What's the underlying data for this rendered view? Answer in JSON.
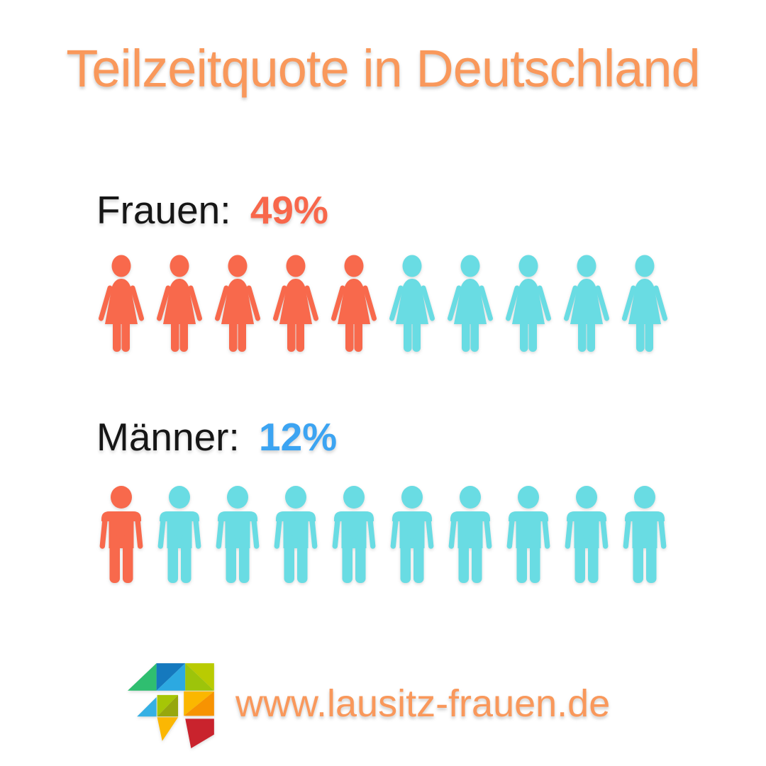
{
  "title": "Teilzeitquote in Deutschland",
  "chart_data": {
    "type": "pictograph",
    "title": "Teilzeitquote in Deutschland",
    "categories": [
      "Frauen",
      "Männer"
    ],
    "values": [
      49,
      12
    ],
    "unit": "%",
    "icons_per_row": 10,
    "legend_position": "none",
    "series": [
      {
        "label": "Frauen:",
        "value": 49,
        "value_label": "49%",
        "icon": "female",
        "icons_total": 10,
        "icons_highlighted": 5,
        "highlight_color": "#F8694C",
        "base_color": "#69DCE3",
        "value_color": "#F8674B"
      },
      {
        "label": "Männer:",
        "value": 12,
        "value_label": "12%",
        "icon": "male",
        "icons_total": 10,
        "icons_highlighted": 1,
        "highlight_color": "#F8694C",
        "base_color": "#69DCE3",
        "value_color": "#3CA4F2"
      }
    ]
  },
  "footer": {
    "website": "www.lausitz-frauen.de"
  },
  "colors": {
    "title": "#F9985B",
    "label_text": "#161616",
    "coral": "#F8694C",
    "teal": "#69DCE3",
    "blue": "#3CA4F2",
    "background": "#FFFFFF"
  }
}
